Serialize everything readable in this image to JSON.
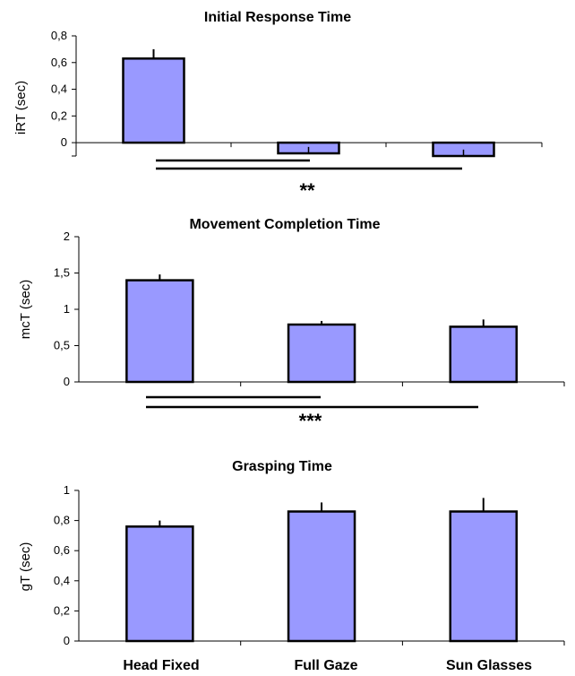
{
  "figure": {
    "bar_color": "#9999ff",
    "categories": [
      "Head Fixed",
      "Full Gaze",
      "Sun Glasses"
    ]
  },
  "chart_data": [
    {
      "type": "bar",
      "title": "Initial Response Time",
      "ylabel": "iRT (sec)",
      "categories": [
        "Head Fixed",
        "Full Gaze",
        "Sun Glasses"
      ],
      "values": [
        0.63,
        -0.08,
        -0.1
      ],
      "errors": [
        0.07,
        0.03,
        0.03
      ],
      "ylim": [
        -0.1,
        0.8
      ],
      "yticks": [
        "0,8",
        "0,6",
        "0,4",
        "0,2",
        "0"
      ],
      "significance": "**"
    },
    {
      "type": "bar",
      "title": "Movement Completion Time",
      "ylabel": "mcT (sec)",
      "categories": [
        "Head Fixed",
        "Full Gaze",
        "Sun Glasses"
      ],
      "values": [
        1.4,
        0.79,
        0.76
      ],
      "errors": [
        0.08,
        0.05,
        0.1
      ],
      "ylim": [
        0,
        2
      ],
      "yticks": [
        "2",
        "1,5",
        "1",
        "0,5",
        "0"
      ],
      "significance": "***"
    },
    {
      "type": "bar",
      "title": "Grasping Time",
      "ylabel": "gT (sec)",
      "categories": [
        "Head Fixed",
        "Full Gaze",
        "Sun Glasses"
      ],
      "values": [
        0.76,
        0.86,
        0.86
      ],
      "errors": [
        0.04,
        0.06,
        0.09
      ],
      "ylim": [
        0,
        1
      ],
      "yticks": [
        "1",
        "0,8",
        "0,6",
        "0,4",
        "0,2",
        "0"
      ],
      "significance": ""
    }
  ]
}
